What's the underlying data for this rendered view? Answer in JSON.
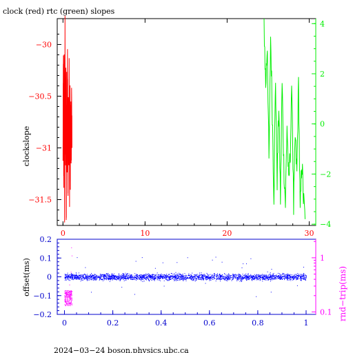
{
  "chart_data": [
    {
      "type": "line",
      "title": "clock (red) rtc (green) slopes",
      "ylabel": "clockslope",
      "xlim": [
        -0.7,
        30.8
      ],
      "ylim": [
        -31.75,
        -29.75
      ],
      "y2lim": [
        -4.05,
        4.2
      ],
      "x_ticks": [
        "0",
        "10",
        "20",
        "30"
      ],
      "x_tick_values": [
        0,
        10,
        20,
        30
      ],
      "y_ticks": [
        "−30",
        "−30.5",
        "−31",
        "−31.5"
      ],
      "y_tick_values": [
        -30,
        -30.5,
        -31,
        -31.5
      ],
      "y2_ticks": [
        "4",
        "2",
        "0",
        "−2",
        "−4"
      ],
      "y2_tick_values": [
        4,
        2,
        0,
        -2,
        -4
      ],
      "colors": {
        "clock": "#ff0000",
        "rtc": "#00ee00",
        "axis_left": "#ff0000",
        "axis_right": "#00ee00"
      },
      "series": [
        {
          "color": "#ff0000",
          "axis": "left",
          "x": [
            0.0,
            0.05,
            0.1,
            0.15,
            0.2,
            0.25,
            0.3,
            0.35,
            0.4,
            0.45,
            0.5,
            0.55,
            0.6,
            0.65,
            0.7,
            0.75,
            0.8,
            0.85,
            0.9,
            0.95,
            1.0,
            1.05,
            1.1
          ],
          "y": [
            -31.2,
            -30.1,
            -31.4,
            -30.3,
            -31.6,
            -29.9,
            -31.3,
            -30.4,
            -31.7,
            -30.2,
            -31.1,
            -30.0,
            -31.5,
            -30.6,
            -31.2,
            -30.3,
            -31.4,
            -30.5,
            -31.3,
            -30.4,
            -31.2,
            -30.5,
            -31.0
          ]
        },
        {
          "color": "#00ee00",
          "axis": "right",
          "x": [
            24.5,
            24.7,
            24.9,
            25.1,
            25.3,
            25.5,
            25.7,
            25.9,
            26.1,
            26.3,
            26.5,
            26.7,
            26.9,
            27.1,
            27.3,
            27.5,
            27.7,
            27.9,
            28.1,
            28.3,
            28.5,
            28.7,
            28.9,
            29.1,
            29.3,
            29.5
          ],
          "y": [
            4.0,
            1.5,
            3.2,
            -1.6,
            3.5,
            0.5,
            -2.8,
            1.8,
            -2.2,
            0.8,
            -3.0,
            1.6,
            -1.5,
            -3.2,
            0.0,
            -2.5,
            -1.0,
            1.5,
            -3.4,
            -0.5,
            -2.0,
            1.6,
            -3.6,
            -1.4,
            -3.0,
            -3.8
          ]
        }
      ]
    },
    {
      "type": "scatter",
      "xlim": [
        -0.03,
        1.04
      ],
      "ylim": [
        -0.2,
        0.2
      ],
      "ylabel": "offset(ms)",
      "y2label": "rnd−trip(ms)",
      "x_ticks": [
        "0",
        "0.2",
        "0.4",
        "0.6",
        "0.8",
        "1"
      ],
      "x_tick_values": [
        0,
        0.2,
        0.4,
        0.6,
        0.8,
        1.0
      ],
      "y_ticks": [
        "0.2",
        "0.1",
        "0",
        "−0.1",
        "−0.2"
      ],
      "y_tick_values": [
        0.2,
        0.1,
        0,
        -0.1,
        -0.2
      ],
      "y2_ticks": [
        "1",
        "0.1"
      ],
      "y2_tick_values": [
        1,
        0.1
      ],
      "y2_log": true,
      "y2lim": [
        0.09,
        2.2
      ],
      "colors": {
        "offset": "#0000ff",
        "roundtrip": "#ff00ff",
        "axis_left": "#0000cc",
        "axis_right": "#ff00ff"
      },
      "offset_band": {
        "x_range": [
          0.0,
          1.0
        ],
        "center": 0.0,
        "spread": 0.025
      },
      "roundtrip_cluster": {
        "x_range": [
          0.0,
          0.03
        ],
        "value_range": [
          0.13,
          0.25
        ]
      }
    }
  ],
  "footer": "2024−03−24 boson.physics.ubc.ca"
}
